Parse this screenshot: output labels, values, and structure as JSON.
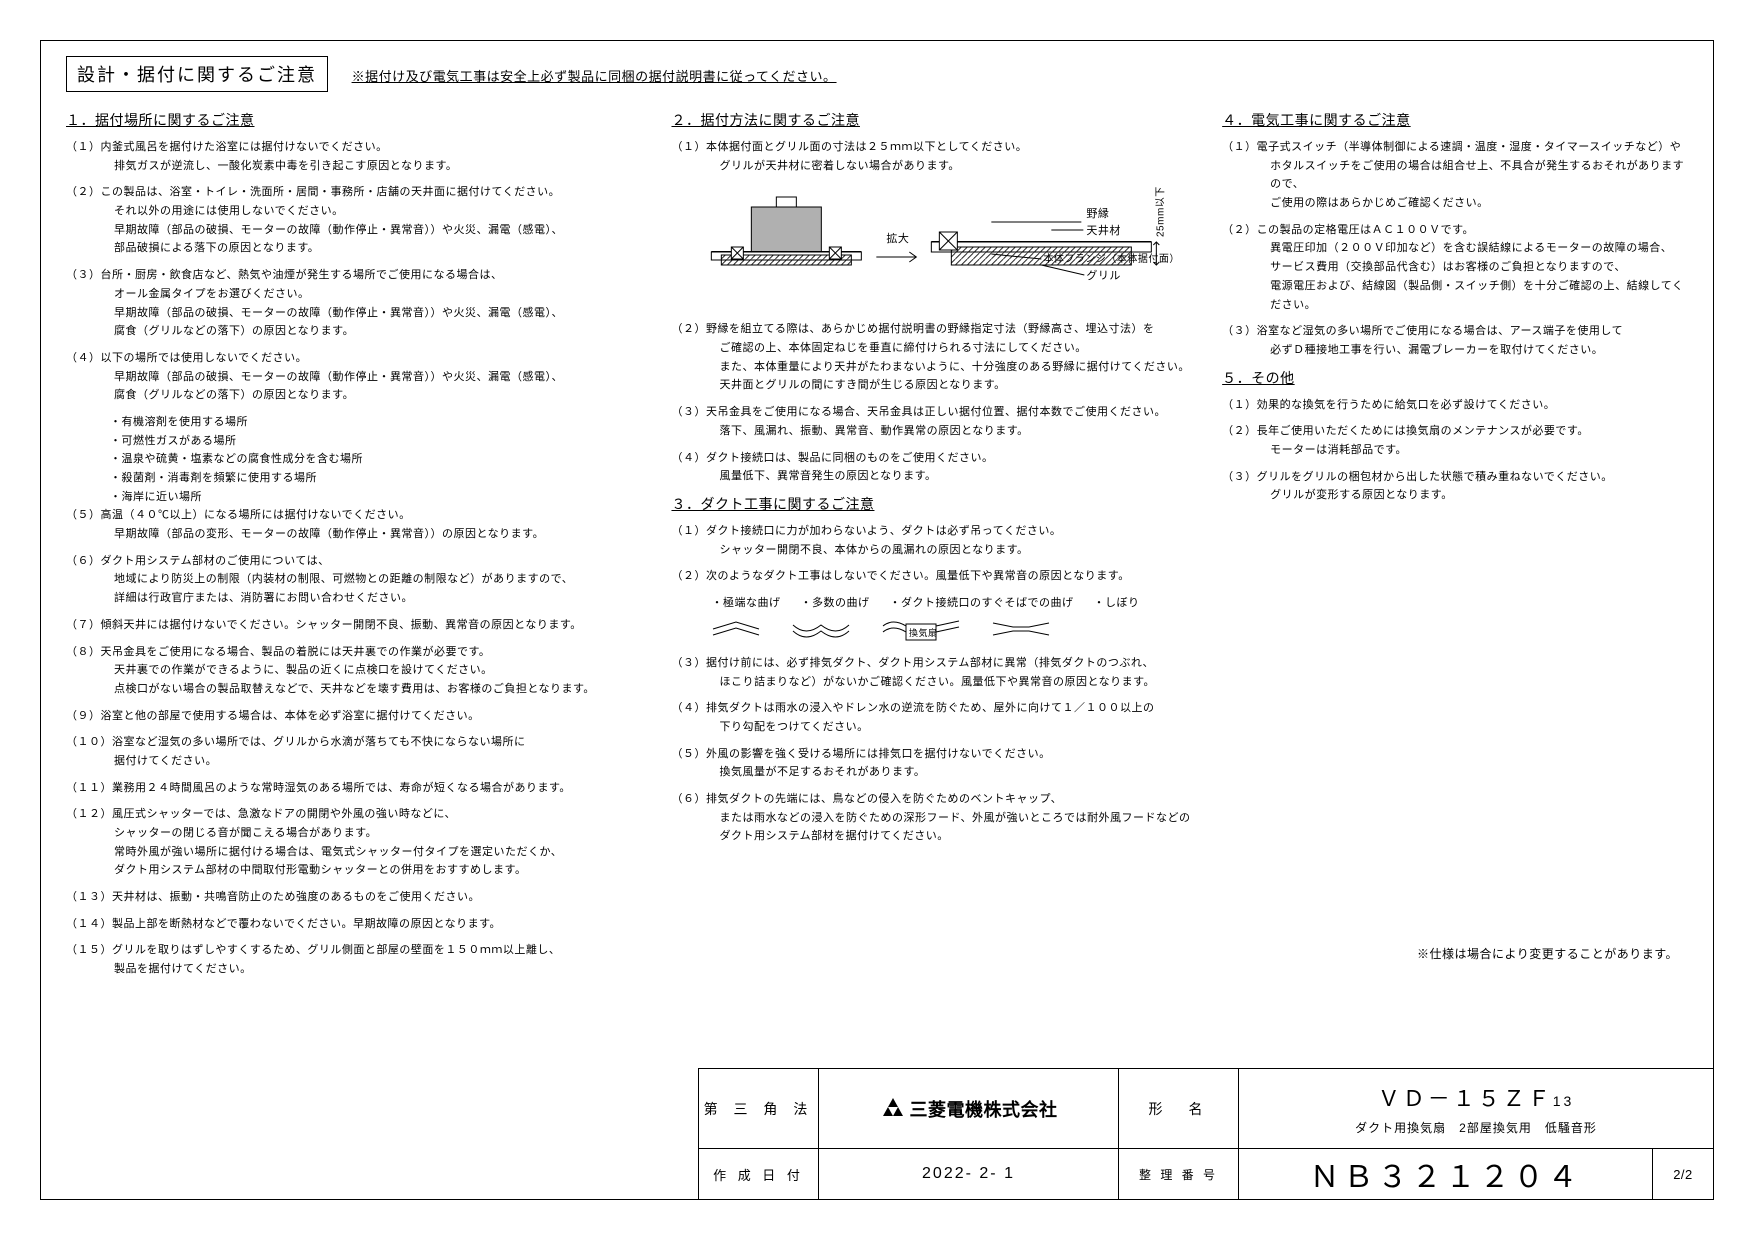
{
  "header": {
    "title": "設計・据付に関するご注意",
    "note": "※据付け及び電気工事は安全上必ず製品に同梱の据付説明書に従ってください。"
  },
  "section1": {
    "title": "１．据付場所に関するご注意",
    "items": [
      "（１）内釜式風呂を据付けた浴室には据付けないでください。\n排気ガスが逆流し、一酸化炭素中毒を引き起こす原因となります。",
      "（２）この製品は、浴室・トイレ・洗面所・居間・事務所・店舗の天井面に据付けてください。\nそれ以外の用途には使用しないでください。\n早期故障（部品の破損、モーターの故障（動作停止・異常音））や火災、漏電（感電）、\n部品破損による落下の原因となります。",
      "（３）台所・厨房・飲食店など、熱気や油煙が発生する場所でご使用になる場合は、\nオール金属タイプをお選びください。\n早期故障（部品の破損、モーターの故障（動作停止・異常音））や火災、漏電（感電）、\n腐食（グリルなどの落下）の原因となります。",
      "（４）以下の場所では使用しないでください。\n早期故障（部品の破損、モーターの故障（動作停止・異常音））や火災、漏電（感電）、\n腐食（グリルなどの落下）の原因となります。",
      "（５）高温（４０℃以上）になる場所には据付けないでください。\n早期故障（部品の変形、モーターの故障（動作停止・異常音））の原因となります。",
      "（６）ダクト用システム部材のご使用については、\n地域により防災上の制限（内装材の制限、可燃物との距離の制限など）がありますので、\n詳細は行政官庁または、消防署にお問い合わせください。",
      "（７）傾斜天井には据付けないでください。シャッター開閉不良、振動、異常音の原因となります。",
      "（８）天吊金具をご使用になる場合、製品の着脱には天井裏での作業が必要です。\n天井裏での作業ができるように、製品の近くに点検口を設けてください。\n点検口がない場合の製品取替えなどで、天井などを壊す費用は、お客様のご負担となります。",
      "（９）浴室と他の部屋で使用する場合は、本体を必ず浴室に据付けてください。",
      "（１０）浴室など湿気の多い場所では、グリルから水滴が落ちても不快にならない場所に\n据付けてください。",
      "（１１）業務用２４時間風呂のような常時湿気のある場所では、寿命が短くなる場合があります。",
      "（１２）風圧式シャッターでは、急激なドアの開閉や外風の強い時などに、\nシャッターの閉じる音が聞こえる場合があります。\n常時外風が強い場所に据付ける場合は、電気式シャッター付タイプを選定いただくか、\nダクト用システム部材の中間取付形電動シャッターとの併用をおすすめします。",
      "（１３）天井材は、振動・共鳴音防止のため強度のあるものをご使用ください。",
      "（１４）製品上部を断熱材などで覆わないでください。早期故障の原因となります。",
      "（１５）グリルを取りはずしやすくするため、グリル側面と部屋の壁面を１５０ｍｍ以上離し、\n製品を据付けてください。"
    ],
    "item4_bullets": [
      "・有機溶剤を使用する場所",
      "・可燃性ガスがある場所",
      "・温泉や硫黄・塩素などの腐食性成分を含む場所",
      "・殺菌剤・消毒剤を頻繁に使用する場所",
      "・海岸に近い場所"
    ]
  },
  "section2": {
    "title": "２．据付方法に関するご注意",
    "items": [
      "（１）本体据付面とグリル面の寸法は２５ｍｍ以下としてください。\nグリルが天井材に密着しない場合があります。",
      "（２）野縁を組立てる際は、あらかじめ据付説明書の野縁指定寸法（野縁高さ、埋込寸法）を\nご確認の上、本体固定ねじを垂直に締付けられる寸法にしてください。\nまた、本体重量により天井がたわまないように、十分強度のある野縁に据付けてください。\n天井面とグリルの間にすき間が生じる原因となります。",
      "（３）天吊金具をご使用になる場合、天吊金具は正しい据付位置、据付本数でご使用ください。\n落下、風漏れ、振動、異常音、動作異常の原因となります。",
      "（４）ダクト接続口は、製品に同梱のものをご使用ください。\n風量低下、異常音発生の原因となります。"
    ],
    "diagram_labels": {
      "nobuchi": "野縁",
      "tenjo": "天井材",
      "kakudai": "拡大",
      "flange": "本体フランジ（本体据付面）",
      "grill": "グリル",
      "dim": "25mm以下"
    }
  },
  "section3": {
    "title": "３．ダクト工事に関するご注意",
    "items": [
      "（１）ダクト接続口に力が加わらないよう、ダクトは必ず吊ってください。\nシャッター開閉不良、本体からの風漏れの原因となります。",
      "（２）次のようなダクト工事はしないでください。風量低下や異常音の原因となります。",
      "（３）据付け前には、必ず排気ダクト、ダクト用システム部材に異常（排気ダクトのつぶれ、\nほこり詰まりなど）がないかご確認ください。風量低下や異常音の原因となります。",
      "（４）排気ダクトは雨水の浸入やドレン水の逆流を防ぐため、屋外に向けて１／１００以上の\n下り勾配をつけてください。",
      "（５）外風の影響を強く受ける場所には排気口を据付けないでください。\n換気風量が不足するおそれがあります。",
      "（６）排気ダクトの先端には、鳥などの侵入を防ぐためのベントキャップ、\nまたは雨水などの浸入を防ぐための深形フード、外風が強いところでは耐外風フードなどの\nダクト用システム部材を据付けてください。"
    ],
    "duct_labels": [
      "・極端な曲げ",
      "・多数の曲げ",
      "・ダクト接続口のすぐそばでの曲げ",
      "・しぼり"
    ],
    "fan_label": "換気扇"
  },
  "section4": {
    "title": "４．電気工事に関するご注意",
    "items": [
      "（１）電子式スイッチ（半導体制御による速調・温度・湿度・タイマースイッチなど）や\nホタルスイッチをご使用の場合は組合せ上、不具合が発生するおそれがありますので、\nご使用の際はあらかじめご確認ください。",
      "（２）この製品の定格電圧はＡＣ１００Ｖです。\n異電圧印加（２００Ｖ印加など）を含む誤結線によるモーターの故障の場合、\nサービス費用（交換部品代含む）はお客様のご負担となりますので、\n電源電圧および、結線図（製品側・スイッチ側）を十分ご確認の上、結線してください。",
      "（３）浴室など湿気の多い場所でご使用になる場合は、アース端子を使用して\n必ずＤ種接地工事を行い、漏電ブレーカーを取付けてください。"
    ]
  },
  "section5": {
    "title": "５．その他",
    "items": [
      "（１）効果的な換気を行うために給気口を必ず設けてください。",
      "（２）長年ご使用いただくためには換気扇のメンテナンスが必要です。\nモーターは消耗部品です。",
      "（３）グリルをグリルの梱包材から出した状態で積み重ねないでください。\nグリルが変形する原因となります。"
    ]
  },
  "footer_note": "※仕様は場合により変更することがあります。",
  "titleblock": {
    "projection": "第 三 角 法",
    "company": "三菱電機株式会社",
    "model_label": "形　名",
    "model": "ＶＤ－１５ＺＦ",
    "model_sub": "13",
    "model_desc": "ダクト用換気扇　2部屋換気用　低騒音形",
    "date_label": "作 成 日 付",
    "date": "2022- 2- 1",
    "dwg_label": "整 理 番 号",
    "dwg": "ＮＢ３２１２０４",
    "page": "2/2"
  }
}
